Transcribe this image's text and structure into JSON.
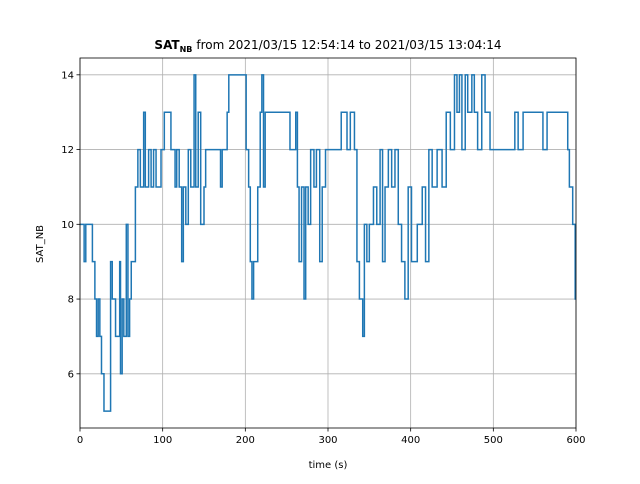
{
  "chart_data": {
    "type": "line",
    "drawstyle": "steps",
    "title": {
      "base": "SAT",
      "subscript": "NB",
      "text": "from 2021/03/15 12:54:14 to 2021/03/15 13:04:14"
    },
    "x_label": "time (s)",
    "y_label": "SAT_NB",
    "xlim": [
      0,
      600
    ],
    "ylim": [
      4.55,
      14.45
    ],
    "xticks": [
      0,
      100,
      200,
      300,
      400,
      500,
      600
    ],
    "yticks": [
      6,
      8,
      10,
      12,
      14
    ],
    "grid": true,
    "series": [
      {
        "color": "#1f77b4",
        "x": [
          0,
          5,
          7,
          15,
          18,
          20,
          22,
          24,
          26,
          29,
          36,
          37,
          39,
          43,
          48,
          49,
          51,
          53,
          56,
          58,
          60,
          62,
          67,
          70,
          73,
          77,
          79,
          83,
          86,
          89,
          92,
          98,
          102,
          110,
          115,
          117,
          120,
          123,
          125,
          128,
          131,
          134,
          138,
          140,
          143,
          146,
          150,
          152,
          165,
          170,
          172,
          178,
          180,
          201,
          204,
          206,
          208,
          210,
          215,
          218,
          220,
          222,
          224,
          240,
          254,
          261,
          263,
          265,
          268,
          271,
          273,
          276,
          279,
          283,
          286,
          290,
          293,
          297,
          310,
          316,
          323,
          327,
          332,
          335,
          338,
          342,
          344,
          347,
          350,
          355,
          359,
          363,
          366,
          369,
          373,
          377,
          381,
          385,
          389,
          393,
          397,
          401,
          408,
          414,
          418,
          422,
          426,
          432,
          438,
          443,
          448,
          453,
          456,
          459,
          462,
          466,
          469,
          474,
          477,
          481,
          486,
          490,
          496,
          505,
          526,
          530,
          536,
          560,
          565,
          590,
          592,
          596,
          599,
          600
        ],
        "values": [
          10,
          9,
          10,
          9,
          8,
          7,
          8,
          7,
          6,
          5,
          5,
          9,
          8,
          7,
          9,
          6,
          8,
          7,
          10,
          7,
          8,
          9,
          11,
          12,
          11,
          13,
          11,
          12,
          11,
          12,
          11,
          12,
          13,
          12,
          11,
          12,
          11,
          9,
          11,
          10,
          12,
          11,
          14,
          11,
          13,
          10,
          11,
          12,
          12,
          11,
          12,
          13,
          14,
          12,
          11,
          9,
          8,
          9,
          11,
          13,
          14,
          11,
          13,
          13,
          12,
          13,
          11,
          9,
          11,
          8,
          11,
          10,
          12,
          11,
          12,
          9,
          11,
          12,
          12,
          13,
          12,
          13,
          12,
          9,
          8,
          7,
          10,
          9,
          10,
          11,
          10,
          12,
          9,
          11,
          12,
          11,
          12,
          10,
          9,
          8,
          11,
          9,
          10,
          11,
          9,
          12,
          11,
          12,
          11,
          13,
          12,
          14,
          13,
          14,
          12,
          14,
          13,
          14,
          13,
          12,
          14,
          13,
          12,
          12,
          13,
          12,
          13,
          12,
          13,
          12,
          11,
          10,
          8,
          8
        ]
      }
    ]
  }
}
